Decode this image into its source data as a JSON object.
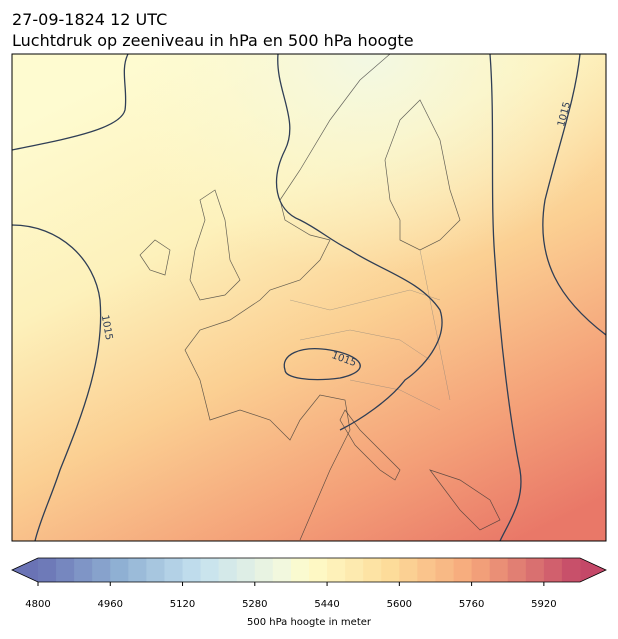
{
  "title": "27-09-1824 12 UTC",
  "subtitle": "Luchtdruk op zeeniveau in hPa en 500 hPa hoogte",
  "isobar_labels": [
    "1015",
    "1015",
    "1015"
  ],
  "colorbar": {
    "label": "500 hPa hoogte in meter",
    "range": [
      4800,
      6000
    ],
    "ticks": [
      4800,
      4960,
      5120,
      5280,
      5440,
      5600,
      5760,
      5920
    ]
  }
}
